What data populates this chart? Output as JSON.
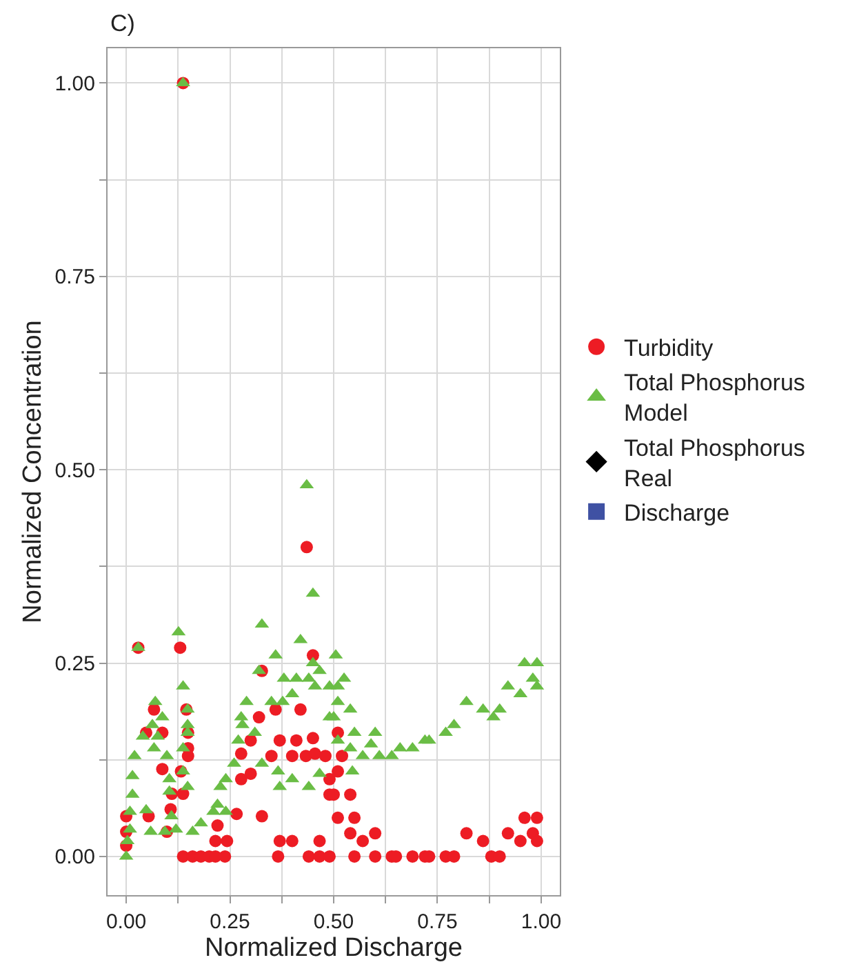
{
  "chart_data": {
    "type": "scatter",
    "title": "C)",
    "xlabel": "Normalized Discharge",
    "ylabel": "Normalized Concentration",
    "xlim": [
      -0.045,
      1.045
    ],
    "ylim": [
      -0.05,
      1.045
    ],
    "xticks": [
      {
        "value": 0,
        "label": "0.00"
      },
      {
        "value": 0.125,
        "label": null
      },
      {
        "value": 0.25,
        "label": "0.25"
      },
      {
        "value": 0.375,
        "label": null
      },
      {
        "value": 0.5,
        "label": "0.50"
      },
      {
        "value": 0.625,
        "label": null
      },
      {
        "value": 0.75,
        "label": "0.75"
      },
      {
        "value": 0.875,
        "label": null
      },
      {
        "value": 1,
        "label": "1.00"
      }
    ],
    "yticks": [
      {
        "value": 0,
        "label": "0.00"
      },
      {
        "value": 0.125,
        "label": null
      },
      {
        "value": 0.25,
        "label": "0.25"
      },
      {
        "value": 0.375,
        "label": null
      },
      {
        "value": 0.5,
        "label": "0.50"
      },
      {
        "value": 0.625,
        "label": null
      },
      {
        "value": 0.75,
        "label": "0.75"
      },
      {
        "value": 0.875,
        "label": null
      },
      {
        "value": 1,
        "label": "1.00"
      }
    ],
    "grid": true,
    "legend": "right",
    "series": [
      {
        "name": "Turbidity",
        "color": "#ed1c24",
        "marker": "circle",
        "x": [
          0.029,
          0.13,
          0.067,
          0.145,
          0.087,
          0.048,
          0.149,
          0.149,
          0.149,
          0.087,
          0.132,
          0.11,
          0.137,
          0,
          0.054,
          0.107,
          0,
          0.098,
          0,
          0.137,
          0.16,
          0.18,
          0.2,
          0.215,
          0.243,
          0.215,
          0.238,
          0.22,
          0.266,
          0.327,
          0.277,
          0.3,
          0.277,
          0.35,
          0.4,
          0.433,
          0.455,
          0.48,
          0.3,
          0.37,
          0.41,
          0.45,
          0.32,
          0.36,
          0.42,
          0.327,
          0.45,
          0.366,
          0.44,
          0.466,
          0.49,
          0.37,
          0.4,
          0.466,
          0.49,
          0.49,
          0.435,
          0.137,
          0.51,
          0.52,
          0.51,
          0.5,
          0.54,
          0.51,
          0.55,
          0.54,
          0.57,
          0.6,
          0.55,
          0.6,
          0.64,
          0.65,
          0.69,
          0.72,
          0.73,
          0.77,
          0.79,
          0.82,
          0.86,
          0.88,
          0.9,
          0.92,
          0.95,
          0.96,
          0.99,
          0.98,
          0.99
        ],
        "values": [
          0.27,
          0.27,
          0.19,
          0.19,
          0.16,
          0.16,
          0.16,
          0.14,
          0.13,
          0.113,
          0.11,
          0.081,
          0.081,
          0.052,
          0.052,
          0.061,
          0.032,
          0.032,
          0.014,
          0,
          0,
          0,
          0,
          0.02,
          0.02,
          0,
          0,
          0.04,
          0.055,
          0.052,
          0.1,
          0.107,
          0.133,
          0.13,
          0.13,
          0.13,
          0.133,
          0.13,
          0.15,
          0.15,
          0.15,
          0.153,
          0.18,
          0.19,
          0.19,
          0.24,
          0.26,
          0,
          0,
          0,
          0,
          0.02,
          0.02,
          0.02,
          0.08,
          0.1,
          0.4,
          1.0,
          0.16,
          0.13,
          0.11,
          0.08,
          0.08,
          0.05,
          0.05,
          0.03,
          0.02,
          0.03,
          0,
          0,
          0,
          0,
          0,
          0,
          0,
          0,
          0,
          0.03,
          0.02,
          0,
          0,
          0.03,
          0.02,
          0.05,
          0.05,
          0.03,
          0.02
        ]
      },
      {
        "name": "Total Phosphorus\nModel",
        "color": "#6abd45",
        "marker": "triangle",
        "x": [
          0.029,
          0.126,
          0.327,
          0.45,
          0.42,
          0.36,
          0.45,
          0.07,
          0.137,
          0.148,
          0.087,
          0.063,
          0.04,
          0.076,
          0.148,
          0.148,
          0.32,
          0.38,
          0.41,
          0.44,
          0.466,
          0.29,
          0.35,
          0.377,
          0.4,
          0.455,
          0.49,
          0.277,
          0.28,
          0.31,
          0.27,
          0.49,
          0.02,
          0.067,
          0.098,
          0.137,
          0.137,
          0.148,
          0.26,
          0.24,
          0.327,
          0.366,
          0.4,
          0.466,
          0.44,
          0.37,
          0.015,
          0.104,
          0.015,
          0.104,
          0.009,
          0.048,
          0.109,
          0.009,
          0.059,
          0.093,
          0.12,
          0.16,
          0.18,
          0.22,
          0.24,
          0.21,
          0.003,
          0,
          0.227,
          0.137,
          0.435,
          0.505,
          0.525,
          0.51,
          0.51,
          0.54,
          0.5,
          0.55,
          0.6,
          0.51,
          0.54,
          0.57,
          0.59,
          0.61,
          0.64,
          0.66,
          0.69,
          0.72,
          0.73,
          0.77,
          0.79,
          0.82,
          0.86,
          0.885,
          0.9,
          0.92,
          0.95,
          0.96,
          0.98,
          0.99,
          0.99,
          0.545
        ],
        "values": [
          0.27,
          0.29,
          0.3,
          0.34,
          0.28,
          0.26,
          0.25,
          0.2,
          0.22,
          0.19,
          0.18,
          0.17,
          0.155,
          0.155,
          0.17,
          0.16,
          0.24,
          0.23,
          0.23,
          0.23,
          0.24,
          0.2,
          0.2,
          0.2,
          0.21,
          0.22,
          0.22,
          0.18,
          0.17,
          0.16,
          0.15,
          0.18,
          0.13,
          0.14,
          0.13,
          0.14,
          0.11,
          0.09,
          0.12,
          0.1,
          0.12,
          0.11,
          0.1,
          0.107,
          0.09,
          0.09,
          0.104,
          0.1,
          0.08,
          0.084,
          0.058,
          0.06,
          0.052,
          0.035,
          0.032,
          0.032,
          0.035,
          0.032,
          0.043,
          0.067,
          0.058,
          0.058,
          0.02,
          0,
          0.09,
          1.0,
          0.48,
          0.26,
          0.23,
          0.22,
          0.2,
          0.19,
          0.18,
          0.16,
          0.16,
          0.15,
          0.14,
          0.13,
          0.145,
          0.13,
          0.13,
          0.14,
          0.14,
          0.15,
          0.15,
          0.16,
          0.17,
          0.2,
          0.19,
          0.18,
          0.19,
          0.22,
          0.21,
          0.25,
          0.23,
          0.22,
          0.25,
          0.11
        ]
      },
      {
        "name": "Total Phosphorus\nReal",
        "color": "#000000",
        "marker": "diamond"
      },
      {
        "name": "Discharge",
        "color": "#3f51a3",
        "marker": "square"
      }
    ]
  }
}
